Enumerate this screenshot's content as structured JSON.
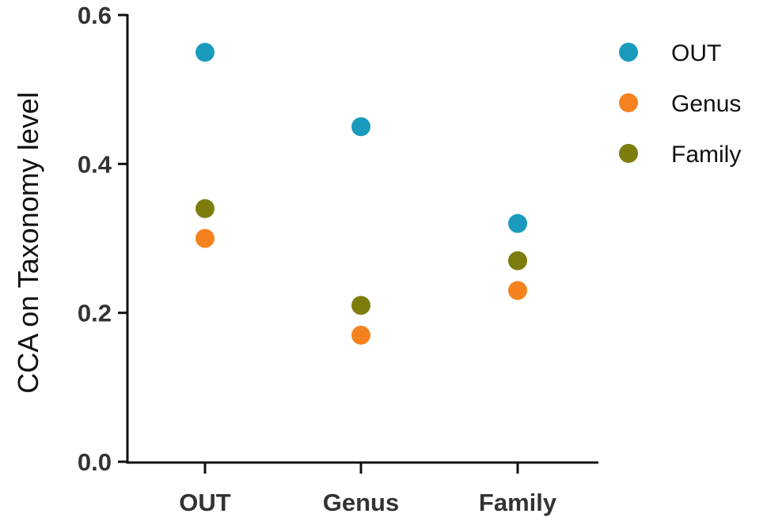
{
  "chart_data": {
    "type": "scatter",
    "title": "",
    "xlabel": "",
    "ylabel": "CCA on Taxonomy level",
    "categories": [
      "OUT",
      "Genus",
      "Family"
    ],
    "ylim": [
      0.0,
      0.6
    ],
    "yticks": [
      0.0,
      0.2,
      0.4,
      0.6
    ],
    "ytick_labels": [
      "0.0",
      "0.2",
      "0.4",
      "0.6"
    ],
    "grid": false,
    "legend_position": "right",
    "series": [
      {
        "name": "OUT",
        "color": "#1a9bbe",
        "values": [
          0.55,
          0.45,
          0.32
        ]
      },
      {
        "name": "Genus",
        "color": "#f5821f",
        "values": [
          0.3,
          0.17,
          0.23
        ]
      },
      {
        "name": "Family",
        "color": "#7d7d0e",
        "values": [
          0.34,
          0.21,
          0.27
        ]
      }
    ]
  }
}
